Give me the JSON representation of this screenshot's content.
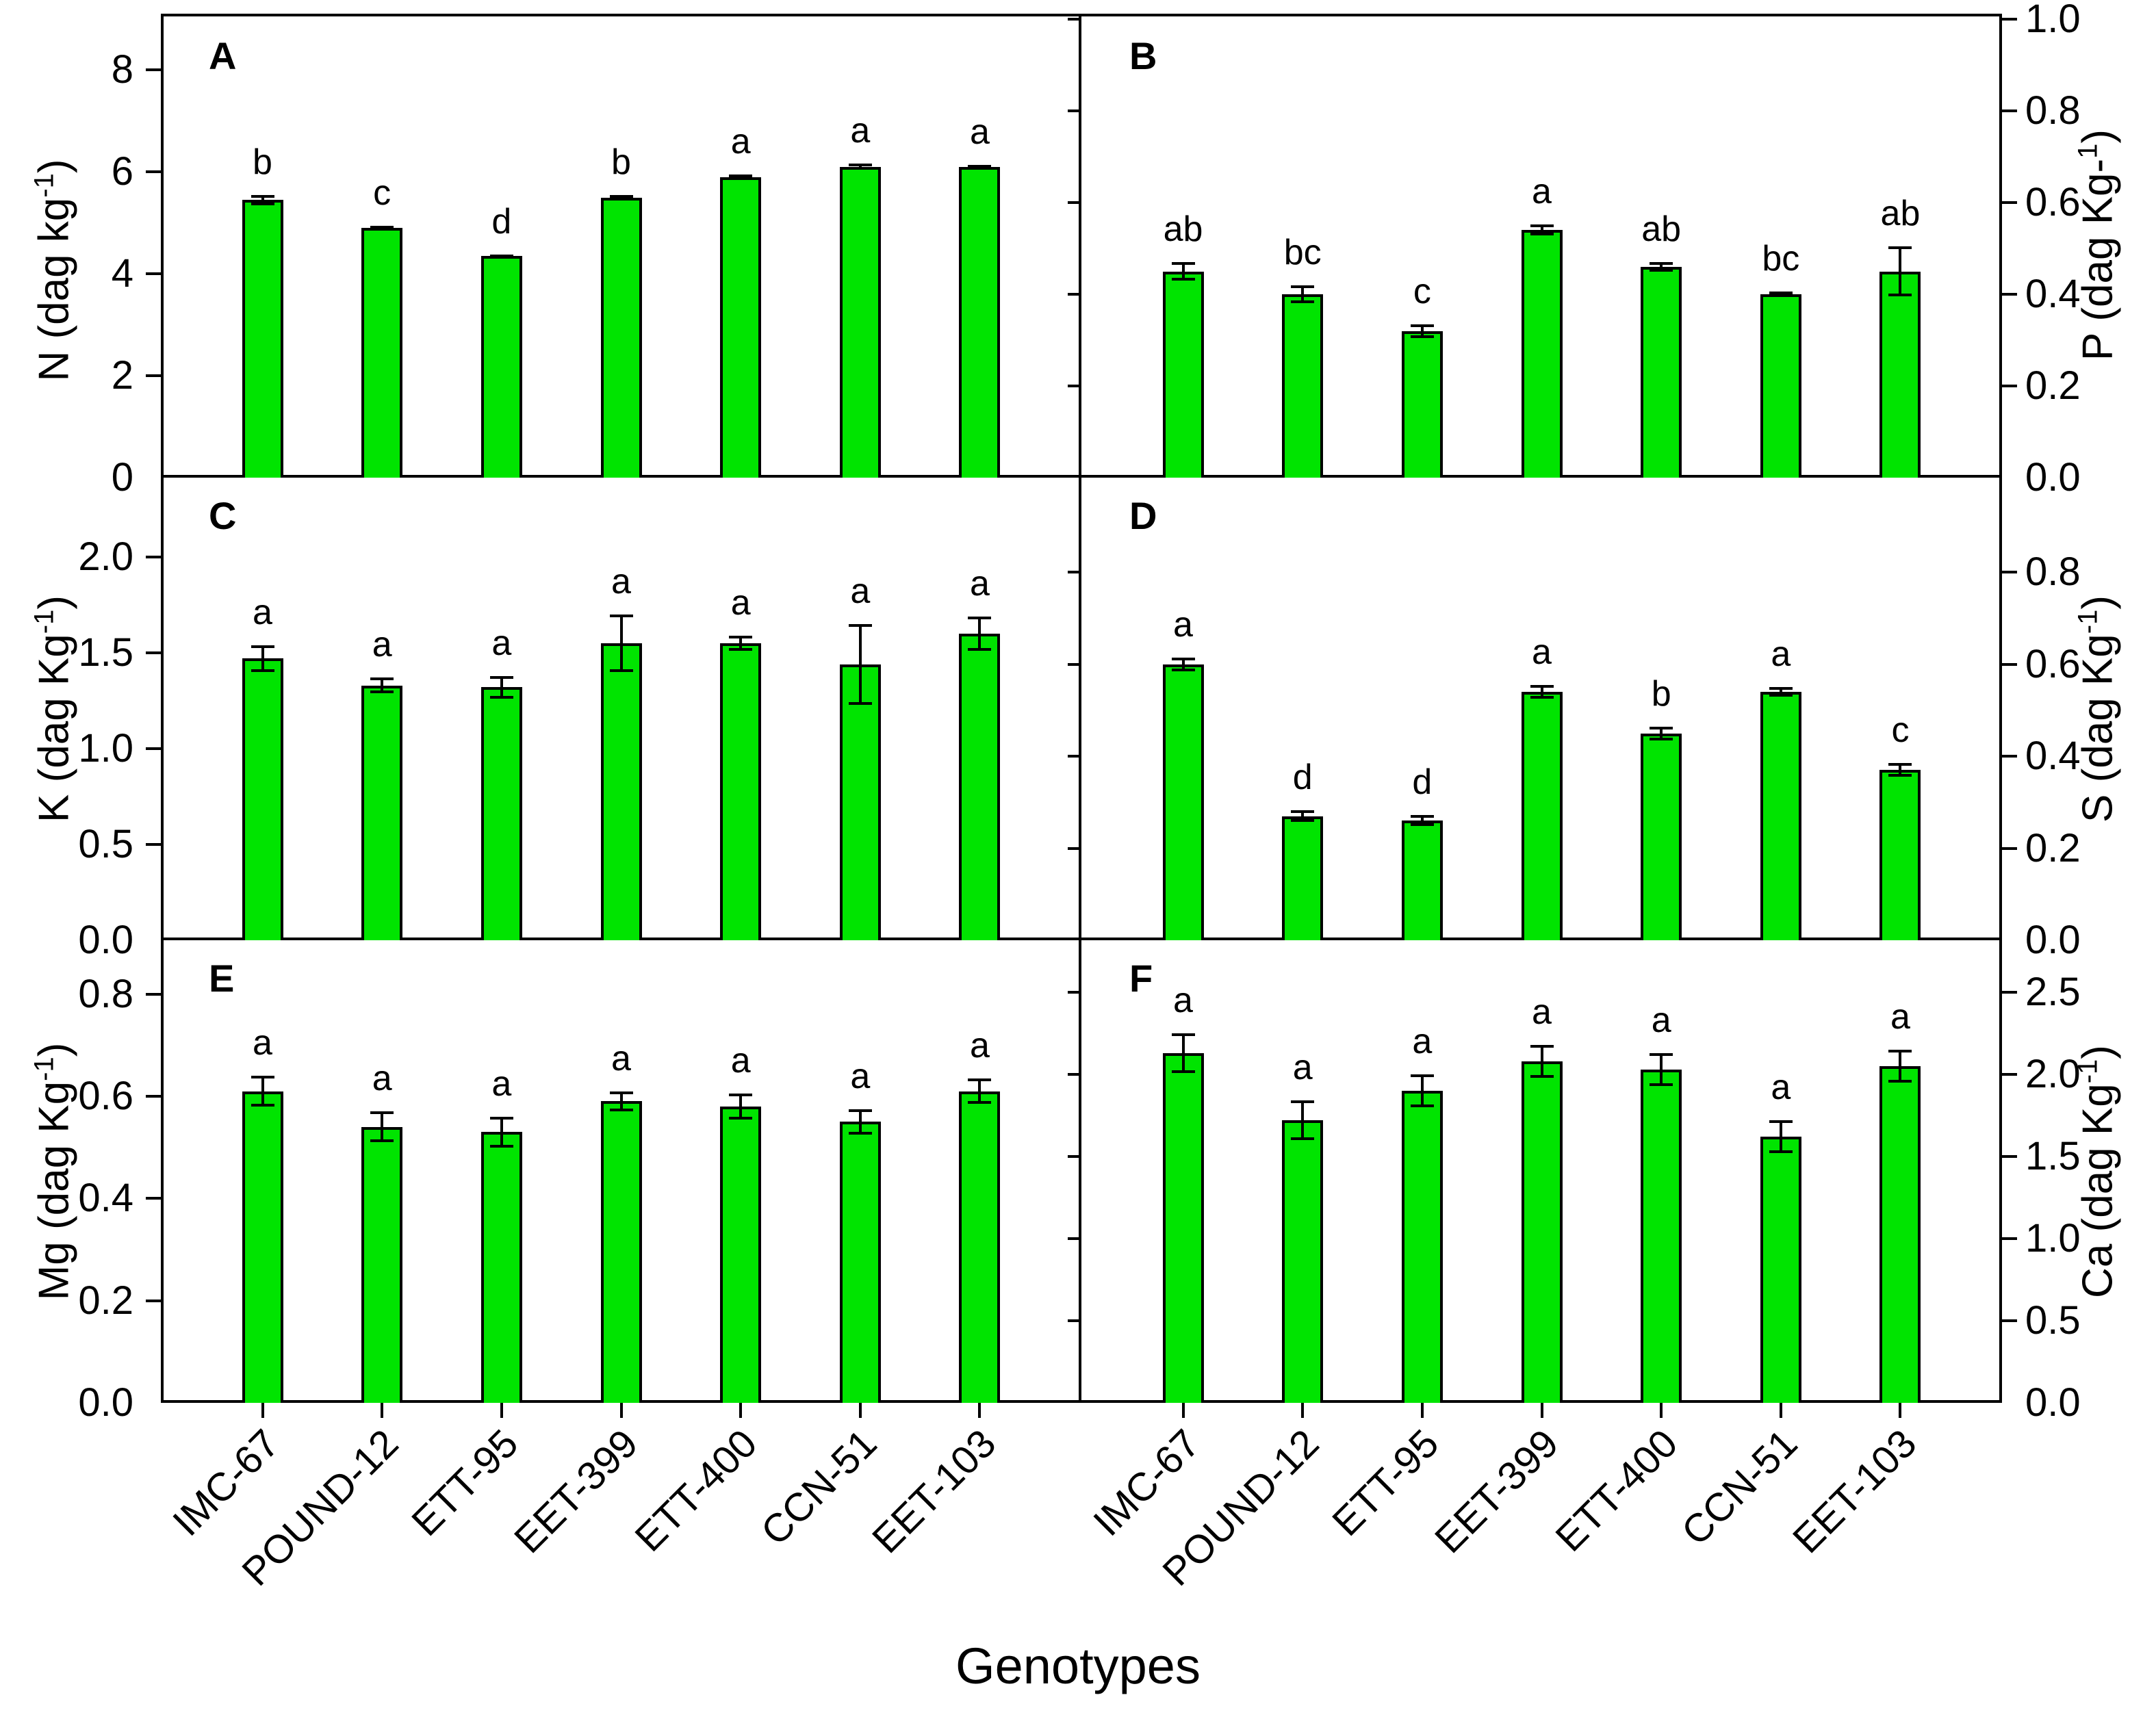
{
  "figure": {
    "xlabel": "Genotypes",
    "background": "#FFFFFF"
  },
  "colors": {
    "bar_fill": "#00E400",
    "bar_border": "#000000",
    "axis": "#000000",
    "text": "#000000"
  },
  "categories": [
    "IMC-67",
    "POUND-12",
    "ETT-95",
    "EET-399",
    "ETT-400",
    "CCN-51",
    "EET-103"
  ],
  "chart_data": [
    {
      "type": "bar",
      "panel": "A",
      "side": "left",
      "ylabel_text": "N (dag kg-1)",
      "ylabel_parts": [
        {
          "text": "N (dag kg"
        },
        {
          "text": "-1",
          "sup": true
        },
        {
          "text": ")"
        }
      ],
      "ylim": [
        0,
        9
      ],
      "ymax": 9,
      "yticks": [
        {
          "v": 0,
          "label": "0"
        },
        {
          "v": 2,
          "label": "2"
        },
        {
          "v": 4,
          "label": "4"
        },
        {
          "v": 6,
          "label": "6"
        },
        {
          "v": 8,
          "label": "8"
        }
      ],
      "values": [
        5.45,
        4.9,
        4.35,
        5.5,
        5.9,
        6.1,
        6.1
      ],
      "errors": [
        0.1,
        0.04,
        0.03,
        0.05,
        0.05,
        0.06,
        0.04
      ],
      "letters": [
        "b",
        "c",
        "d",
        "b",
        "a",
        "a",
        "a"
      ]
    },
    {
      "type": "bar",
      "panel": "B",
      "side": "right",
      "ylabel_text": "P (dag Kg-1)",
      "ylabel_parts": [
        {
          "text": "P (dag Kg-"
        },
        {
          "text": "1",
          "sup": true
        },
        {
          "text": ")"
        }
      ],
      "ylim": [
        0,
        1.0
      ],
      "ymax": 1.0,
      "yticks": [
        {
          "v": 0,
          "label": "0.0"
        },
        {
          "v": 0.2,
          "label": "0.2"
        },
        {
          "v": 0.4,
          "label": "0.4"
        },
        {
          "v": 0.6,
          "label": "0.6"
        },
        {
          "v": 0.8,
          "label": "0.8"
        },
        {
          "v": 1.0,
          "label": "1.0"
        }
      ],
      "values": [
        0.45,
        0.4,
        0.32,
        0.54,
        0.46,
        0.4,
        0.45
      ],
      "errors": [
        0.02,
        0.02,
        0.015,
        0.012,
        0.01,
        0.006,
        0.055
      ],
      "letters": [
        "ab",
        "bc",
        "c",
        "a",
        "ab",
        "bc",
        "ab"
      ]
    },
    {
      "type": "bar",
      "panel": "C",
      "side": "left",
      "ylabel_text": "K (dag Kg-1)",
      "ylabel_parts": [
        {
          "text": "K (dag Kg"
        },
        {
          "text": "-1",
          "sup": true
        },
        {
          "text": ")"
        }
      ],
      "ylim": [
        0,
        2.4
      ],
      "ymax": 2.4,
      "yticks": [
        {
          "v": 0,
          "label": "0.0"
        },
        {
          "v": 0.5,
          "label": "0.5"
        },
        {
          "v": 1.0,
          "label": "1.0"
        },
        {
          "v": 1.5,
          "label": "1.5"
        },
        {
          "v": 2.0,
          "label": "2.0"
        }
      ],
      "values": [
        1.47,
        1.33,
        1.32,
        1.55,
        1.55,
        1.44,
        1.6
      ],
      "errors": [
        0.07,
        0.04,
        0.06,
        0.15,
        0.04,
        0.21,
        0.09
      ],
      "letters": [
        "a",
        "a",
        "a",
        "a",
        "a",
        "a",
        "a"
      ]
    },
    {
      "type": "bar",
      "panel": "D",
      "side": "right",
      "ylabel_text": "S (dag Kg-1)",
      "ylabel_parts": [
        {
          "text": "S (dag Kg"
        },
        {
          "text": "-1",
          "sup": true
        },
        {
          "text": ")"
        }
      ],
      "ylim": [
        0,
        1.0
      ],
      "ymax": 1.0,
      "yticks": [
        {
          "v": 0,
          "label": "0.0"
        },
        {
          "v": 0.2,
          "label": "0.2"
        },
        {
          "v": 0.4,
          "label": "0.4"
        },
        {
          "v": 0.6,
          "label": "0.6"
        },
        {
          "v": 0.8,
          "label": "0.8"
        }
      ],
      "values": [
        0.6,
        0.27,
        0.26,
        0.54,
        0.45,
        0.54,
        0.37
      ],
      "errors": [
        0.015,
        0.012,
        0.012,
        0.015,
        0.015,
        0.01,
        0.015
      ],
      "letters": [
        "a",
        "d",
        "d",
        "a",
        "b",
        "a",
        "c"
      ]
    },
    {
      "type": "bar",
      "panel": "E",
      "side": "left",
      "ylabel_text": "Mg (dag Kg-1)",
      "ylabel_parts": [
        {
          "text": "Mg (dag Kg"
        },
        {
          "text": "-1",
          "sup": true
        },
        {
          "text": ")"
        }
      ],
      "ylim": [
        0,
        0.9
      ],
      "ymax": 0.9,
      "yticks": [
        {
          "v": 0,
          "label": "0.0"
        },
        {
          "v": 0.2,
          "label": "0.2"
        },
        {
          "v": 0.4,
          "label": "0.4"
        },
        {
          "v": 0.6,
          "label": "0.6"
        },
        {
          "v": 0.8,
          "label": "0.8"
        }
      ],
      "values": [
        0.61,
        0.54,
        0.53,
        0.59,
        0.58,
        0.55,
        0.61
      ],
      "errors": [
        0.03,
        0.03,
        0.03,
        0.02,
        0.025,
        0.025,
        0.025
      ],
      "letters": [
        "a",
        "a",
        "a",
        "a",
        "a",
        "a",
        "a"
      ]
    },
    {
      "type": "bar",
      "panel": "F",
      "side": "right",
      "ylabel_text": "Ca (dag Kg-1)",
      "ylabel_parts": [
        {
          "text": "Ca (dag Kg"
        },
        {
          "text": "-1",
          "sup": true
        },
        {
          "text": ")"
        }
      ],
      "ylim": [
        0,
        2.8
      ],
      "ymax": 2.8,
      "yticks": [
        {
          "v": 0,
          "label": "0.0"
        },
        {
          "v": 0.5,
          "label": "0.5"
        },
        {
          "v": 1.0,
          "label": "1.0"
        },
        {
          "v": 1.5,
          "label": "1.5"
        },
        {
          "v": 2.0,
          "label": "2.0"
        },
        {
          "v": 2.5,
          "label": "2.5"
        }
      ],
      "values": [
        2.13,
        1.72,
        1.9,
        2.08,
        2.03,
        1.62,
        2.05
      ],
      "errors": [
        0.12,
        0.12,
        0.1,
        0.1,
        0.1,
        0.1,
        0.1
      ],
      "letters": [
        "a",
        "a",
        "a",
        "a",
        "a",
        "a",
        "a"
      ]
    }
  ]
}
